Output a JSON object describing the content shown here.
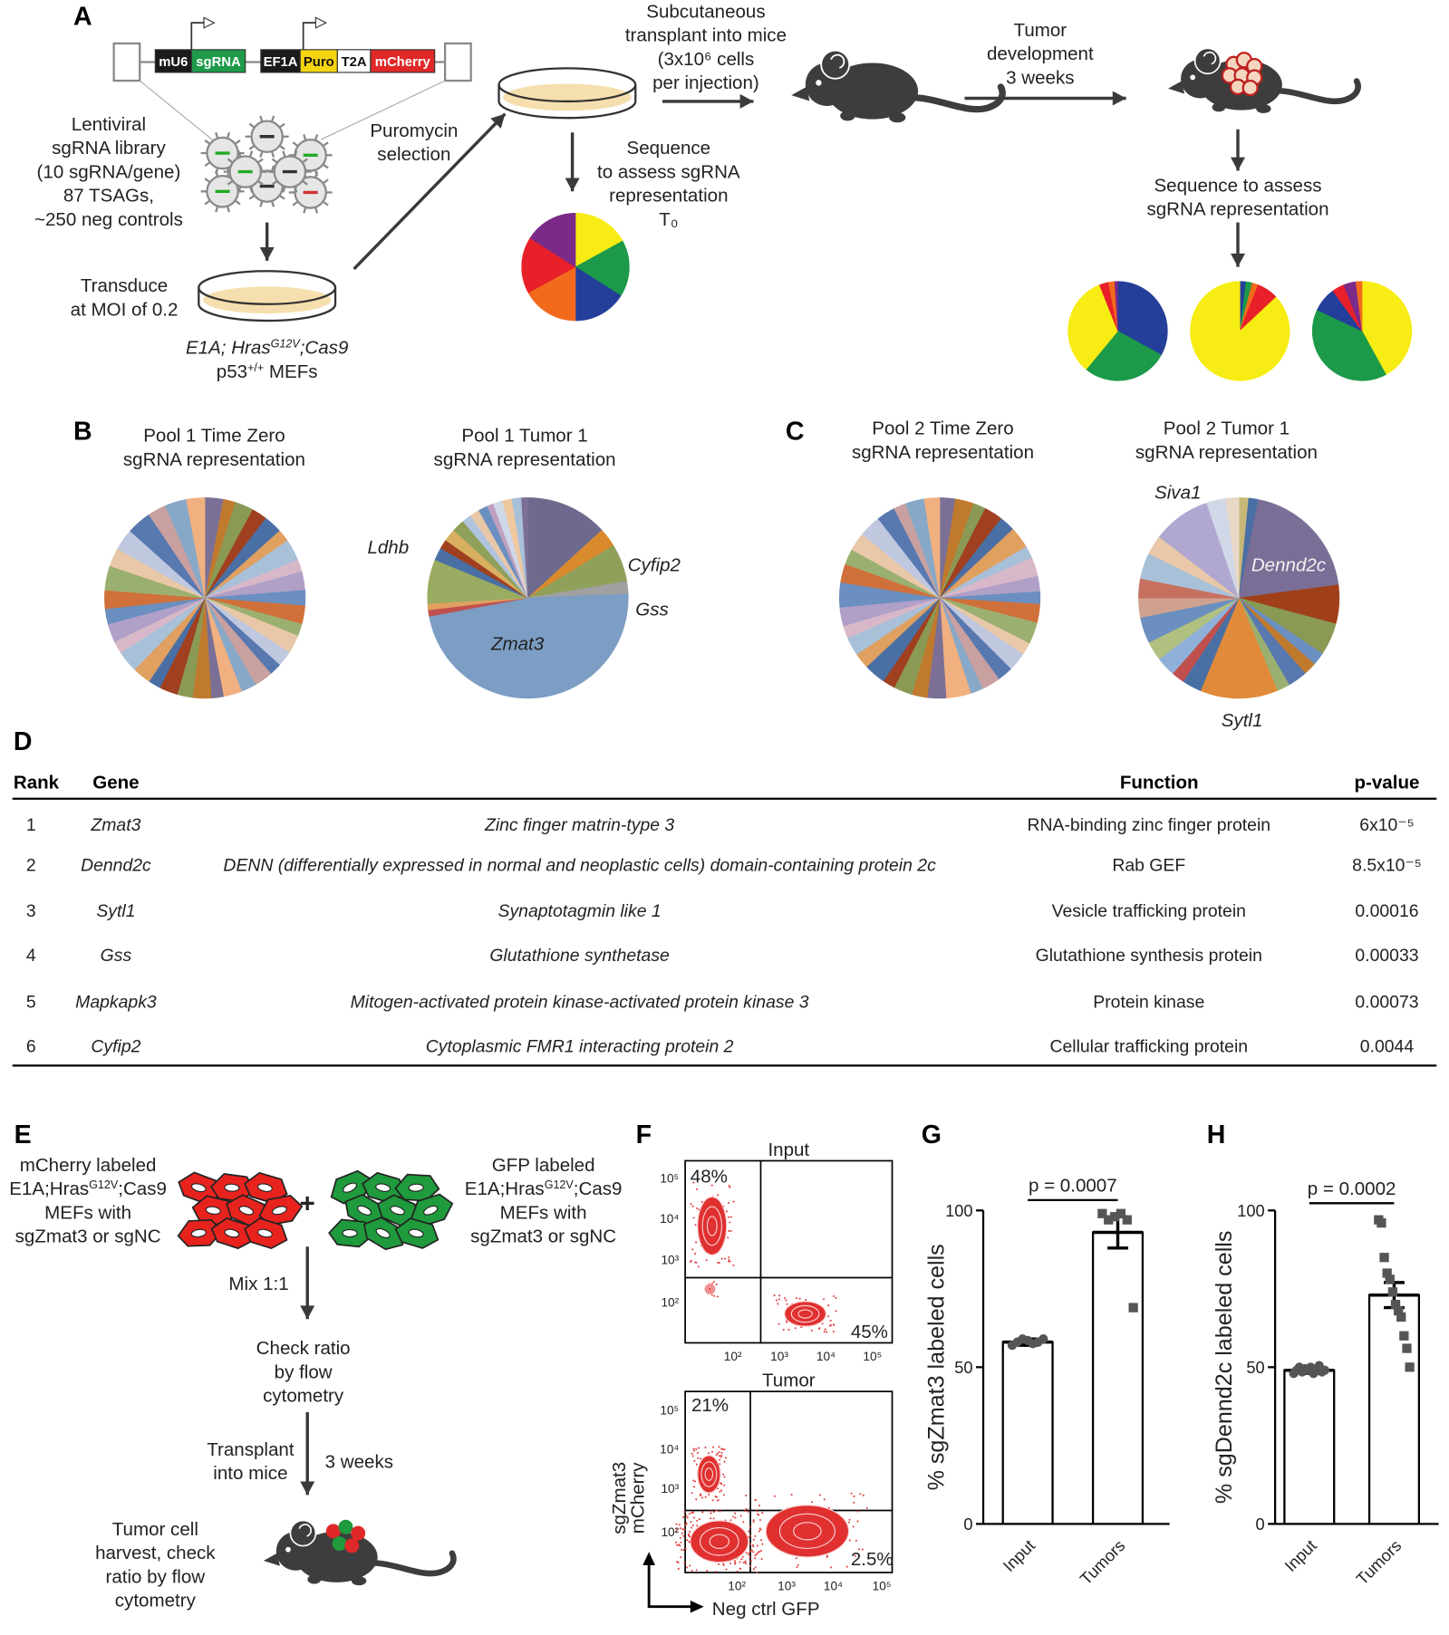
{
  "panel_labels": [
    "A",
    "B",
    "C",
    "D",
    "E",
    "F",
    "G",
    "H"
  ],
  "palette": [
    "#7b6f96",
    "#c07a2e",
    "#8a9a55",
    "#a04020",
    "#4a6fa5",
    "#e0a060",
    "#a8c0d8",
    "#d8b8c8",
    "#b0a0c8",
    "#6a8fc0",
    "#d0703a",
    "#9bb070",
    "#e8c8a8",
    "#c0c8e0",
    "#5878b0",
    "#c8a0a0",
    "#88a8c8",
    "#f0b080"
  ],
  "panel_a": {
    "construct": [
      "mU6",
      "sgRNA",
      "EF1A",
      "Puro",
      "T2A",
      "mCherry"
    ],
    "library": [
      "Lentiviral",
      "sgRNA library",
      "(10 sgRNA/gene)",
      "87 TSAGs,",
      "~250 neg controls"
    ],
    "transduce": [
      "Transduce",
      "at MOI of 0.2"
    ],
    "cells": [
      [
        "E1A; Hras",
        "G12V",
        ";Cas9"
      ],
      [
        "p53",
        "+/+",
        " MEFs"
      ]
    ],
    "selection": [
      "Puromycin",
      "selection"
    ],
    "sequence_t0": [
      "Sequence",
      "to assess sgRNA",
      "representation",
      "T₀"
    ],
    "transplant": [
      "Subcutaneous",
      "transplant into mice",
      "(3x10⁶ cells",
      "per injection)"
    ],
    "tumor_development": [
      "Tumor",
      "development",
      "3 weeks"
    ],
    "sequence_tumor": [
      "Sequence to assess",
      "sgRNA representation"
    ],
    "pie_t0": {
      "type": "pie",
      "values": [
        17,
        17,
        16,
        17,
        17,
        16
      ],
      "colors": [
        "#f7ec13",
        "#1c9a4a",
        "#233f99",
        "#f26b1d",
        "#e8202a",
        "#7b2a8a"
      ]
    },
    "pies_tumor": [
      {
        "type": "pie",
        "values": [
          33,
          28,
          33,
          3,
          2,
          1
        ],
        "colors": [
          "#233f99",
          "#1c9a4a",
          "#f7ec13",
          "#e8202a",
          "#f26b1d",
          "#7b2a8a"
        ]
      },
      {
        "type": "pie",
        "values": [
          2,
          2,
          2,
          7,
          87
        ],
        "colors": [
          "#233f99",
          "#1c9a4a",
          "#f26b1d",
          "#e8202a",
          "#f7ec13"
        ]
      },
      {
        "type": "pie",
        "values": [
          42,
          40,
          8,
          4,
          4,
          2
        ],
        "colors": [
          "#f7ec13",
          "#1c9a4a",
          "#233f99",
          "#e8202a",
          "#7b2a8a",
          "#f26b1d"
        ]
      }
    ]
  },
  "panel_b": {
    "pies": [
      {
        "type": "pie",
        "title": [
          "Pool 1 Time Zero",
          "sgRNA representation"
        ],
        "values": [
          3,
          2,
          3,
          2.5,
          3,
          2,
          3.5,
          2,
          3,
          2.5,
          3,
          2,
          3,
          2.5,
          2,
          3,
          2.5,
          3,
          2,
          3,
          2.5,
          3,
          2,
          3,
          3.5,
          2,
          3,
          2.5,
          3,
          4,
          3,
          3.5,
          4,
          3,
          3.5,
          3
        ]
      },
      {
        "type": "pie",
        "title": [
          "Pool 1 Tumor 1",
          "sgRNA representation"
        ],
        "labels": [
          "Ldhb",
          "Cyfip2",
          "Gss",
          "Zmat3"
        ],
        "values": [
          13,
          3,
          6,
          2,
          47,
          1,
          1,
          7,
          2,
          1.5,
          2,
          2,
          1.5,
          1.5,
          1.5,
          1,
          1.5,
          1.5,
          1.5,
          1
        ],
        "colors": [
          "#6e6a8e",
          "#d98a2c",
          "#8fa05a",
          "#a0a0a0",
          "#7c9dc4",
          "#c0504d",
          "#e0a060",
          "#9aab62",
          "#4a6fa5",
          "#a04020",
          "#d8b060",
          "#8fa05a",
          "#b0c4de",
          "#e8c8a8",
          "#6a8fc0",
          "#c0a0c0",
          "#d0d8e8",
          "#f0c8a0",
          "#a8c0d8",
          "#7b6f96"
        ]
      }
    ]
  },
  "panel_c": {
    "pies": [
      {
        "type": "pie",
        "title": [
          "Pool 2 Time Zero",
          "sgRNA representation"
        ],
        "values": [
          2.5,
          3,
          2,
          3,
          2.5,
          3.5,
          2,
          3,
          2.5,
          2,
          3,
          3.5,
          2,
          3,
          2.5,
          3,
          2,
          4,
          3,
          2.5,
          3,
          2,
          3.5,
          2.5,
          3,
          2,
          3,
          4,
          3,
          2.5,
          3,
          3.5,
          3,
          2,
          3,
          2.5
        ]
      },
      {
        "type": "pie",
        "title": [
          "Pool 2 Tumor 1",
          "sgRNA representation"
        ],
        "labels": [
          "Siva1",
          "Dennd2c",
          "Sytl1"
        ],
        "values": [
          1.5,
          1.5,
          19,
          6,
          5,
          2,
          2,
          3,
          2,
          12,
          3,
          2,
          3,
          3,
          4,
          3,
          3,
          4,
          3,
          9,
          3,
          2
        ],
        "colors": [
          "#c8b878",
          "#4a6fa5",
          "#7a6e96",
          "#a0401a",
          "#8a9a55",
          "#6a8fc0",
          "#c07a2e",
          "#5878b0",
          "#9bb070",
          "#e08a3a",
          "#4a6fa5",
          "#c0504d",
          "#8fb0d8",
          "#b0c080",
          "#6a8fc0",
          "#d0a090",
          "#c87060",
          "#a8c0d8",
          "#e8c8a8",
          "#b0a8d0",
          "#d0d8e8",
          "#e8d8c8"
        ]
      }
    ]
  },
  "table": {
    "header": [
      "Rank",
      "Gene",
      "Function",
      "p-value"
    ],
    "rows": [
      [
        1,
        "Zmat3",
        "Zinc finger matrin-type 3",
        "RNA-binding zinc finger protein",
        "6x10⁻⁵"
      ],
      [
        2,
        "Dennd2c",
        "DENN (differentially expressed in normal and neoplastic cells) domain-containing protein 2c",
        "Rab GEF",
        "8.5x10⁻⁵"
      ],
      [
        3,
        "Sytl1",
        "Synaptotagmin like 1",
        "Vesicle trafficking protein",
        "0.00016"
      ],
      [
        4,
        "Gss",
        "Glutathione synthetase",
        "Glutathione synthesis protein",
        "0.00033"
      ],
      [
        5,
        "Mapkapk3",
        "Mitogen-activated protein kinase-activated protein kinase 3",
        "Protein kinase",
        "0.00073"
      ],
      [
        6,
        "Cyfip2",
        "Cytoplasmic FMR1 interacting protein 2",
        "Cellular trafficking protein",
        "0.0044"
      ]
    ]
  },
  "panel_e": {
    "left": [
      "mCherry labeled",
      [
        "E1A;Hras",
        "G12V",
        ";Cas9"
      ],
      "MEFs with",
      "sgZmat3 or sgNC"
    ],
    "plus": "+",
    "right": [
      "GFP labeled",
      [
        "E1A;Hras",
        "G12V",
        ";Cas9"
      ],
      "MEFs with",
      "sgZmat3 or sgNC"
    ],
    "mix": "Mix 1:1",
    "check": [
      "Check ratio",
      "by flow",
      "cytometry"
    ],
    "transplant": [
      "Transplant",
      "into mice"
    ],
    "duration": "3 weeks",
    "harvest": [
      "Tumor cell",
      "harvest, check",
      "ratio by flow",
      "cytometry"
    ]
  },
  "panel_f": {
    "plots": [
      {
        "title": "Input",
        "quadrants": [
          "48%",
          "45%"
        ]
      },
      {
        "title": "Tumor",
        "quadrants": [
          "21%",
          "2.5%"
        ]
      }
    ],
    "axis_ticks": [
      "10²",
      "10³",
      "10⁴",
      "10⁵"
    ],
    "ylabel": [
      "sgZmat3",
      "mCherry"
    ],
    "xlabel": "Neg ctrl GFP"
  },
  "panel_g": {
    "type": "bar",
    "ylabel": "% sgZmat3 labeled cells",
    "p_label": "p = 0.0007",
    "categories": [
      "Input",
      "Tumors"
    ],
    "values": [
      58,
      93
    ],
    "errors": [
      1,
      5
    ],
    "points": [
      [
        57,
        58,
        59,
        58.5,
        57.5,
        58,
        59
      ],
      [
        99,
        97,
        98,
        99,
        97,
        69
      ]
    ],
    "ylim": [
      0,
      100
    ],
    "yticks": [
      0,
      50,
      100
    ]
  },
  "panel_h": {
    "type": "bar",
    "ylabel": "% sgDennd2c labeled cells",
    "p_label": "p = 0.0002",
    "categories": [
      "Input",
      "Tumors"
    ],
    "values": [
      49,
      73
    ],
    "errors": [
      1,
      4
    ],
    "points": [
      [
        48,
        49,
        50,
        48.5,
        49.5,
        49,
        50,
        48,
        49,
        50.5,
        48.5,
        49
      ],
      [
        97,
        96,
        85,
        80,
        78,
        74,
        70,
        68,
        66,
        60,
        56,
        50
      ]
    ],
    "ylim": [
      0,
      100
    ],
    "yticks": [
      0,
      50,
      100
    ]
  }
}
